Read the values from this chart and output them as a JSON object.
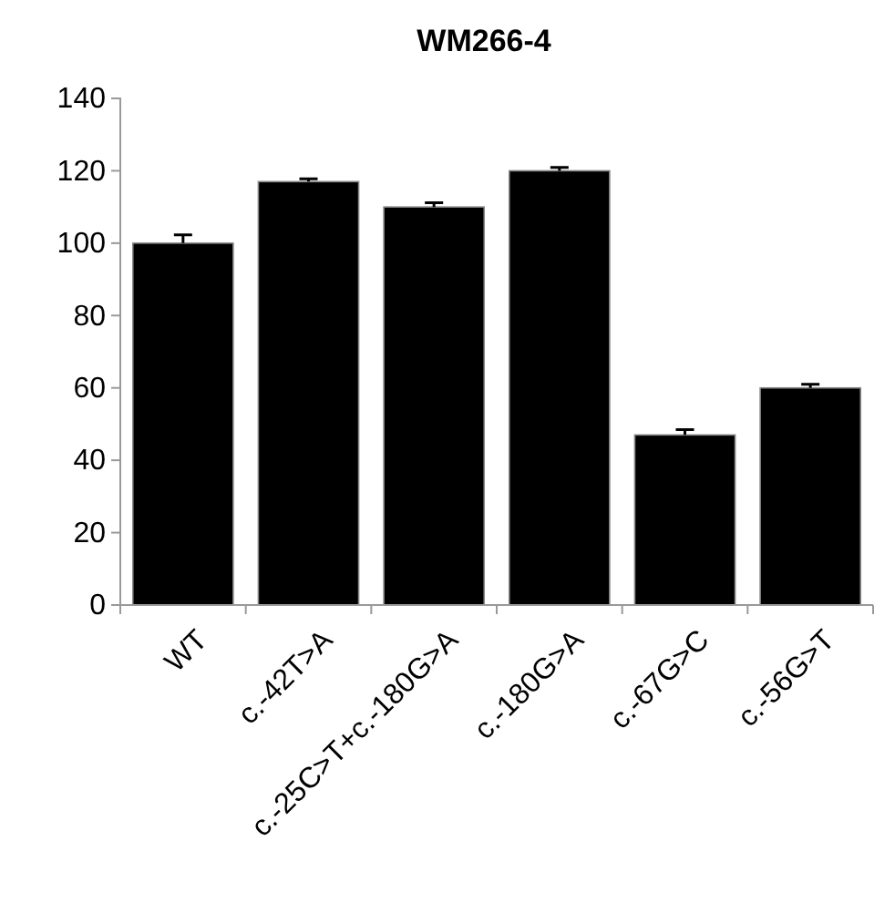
{
  "chart_data": {
    "type": "bar",
    "title": "WM266-4",
    "categories": [
      "WT",
      "c.-42T>A",
      "c.-25C>T+c.-180G>A",
      "c.-180G>A",
      "c.-67G>C",
      "c.-56G>T"
    ],
    "values": [
      100,
      117,
      110,
      120,
      47,
      60
    ],
    "errors": [
      2.3,
      0.8,
      1.2,
      0.9,
      1.5,
      1
    ],
    "color": "#000000",
    "ylim": [
      0,
      140
    ],
    "yticks": [
      0,
      20,
      40,
      60,
      80,
      100,
      120,
      140
    ],
    "grid": false
  }
}
